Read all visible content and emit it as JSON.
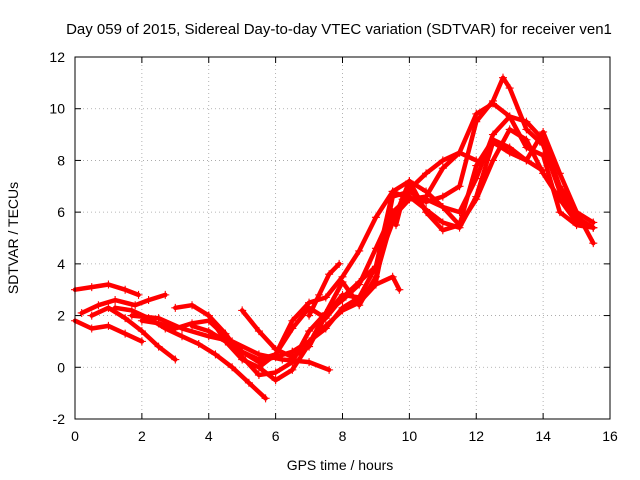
{
  "chart_data": {
    "type": "scatter",
    "title": "Day 059 of 2015, Sidereal Day-to-day VTEC variation (SDTVAR) for receiver ven1",
    "xlabel": "GPS time / hours",
    "ylabel": "SDTVAR / TECUs",
    "xlim": [
      0,
      16
    ],
    "ylim": [
      -2,
      12
    ],
    "xticks": [
      0,
      2,
      4,
      6,
      8,
      10,
      12,
      14,
      16
    ],
    "yticks": [
      -2,
      0,
      2,
      4,
      6,
      8,
      10,
      12
    ],
    "xtick_labels": [
      "0",
      "2",
      "4",
      "6",
      "8",
      "10",
      "12",
      "14",
      "16"
    ],
    "ytick_labels": [
      "-2",
      "0",
      "2",
      "4",
      "6",
      "8",
      "10",
      "12"
    ],
    "grid": true,
    "marker": "+",
    "color": "#ff0000",
    "series": [
      {
        "name": "track-1",
        "x": [
          0.0,
          0.5,
          1.0,
          1.5,
          1.9
        ],
        "y": [
          3.0,
          3.1,
          3.2,
          3.0,
          2.8
        ]
      },
      {
        "name": "track-2",
        "x": [
          0.2,
          0.7,
          1.2,
          1.8,
          2.2,
          2.7
        ],
        "y": [
          2.1,
          2.4,
          2.6,
          2.4,
          2.6,
          2.8
        ]
      },
      {
        "name": "track-3",
        "x": [
          0.0,
          0.5,
          1.0,
          1.5,
          2.0
        ],
        "y": [
          1.8,
          1.5,
          1.6,
          1.3,
          1.0
        ]
      },
      {
        "name": "track-4",
        "x": [
          0.5,
          1.0,
          1.5,
          2.0,
          2.5,
          3.0
        ],
        "y": [
          2.0,
          2.3,
          1.9,
          1.4,
          0.8,
          0.3
        ]
      },
      {
        "name": "track-5",
        "x": [
          1.2,
          1.7,
          2.2,
          2.7,
          3.2,
          3.7,
          4.2,
          4.7,
          5.2,
          5.7
        ],
        "y": [
          2.3,
          2.2,
          1.9,
          1.5,
          1.2,
          0.9,
          0.5,
          0.0,
          -0.6,
          -1.2
        ]
      },
      {
        "name": "track-6",
        "x": [
          1.7,
          2.5,
          3.2,
          4.0,
          4.7,
          5.5,
          6.2,
          7.0,
          7.6
        ],
        "y": [
          2.0,
          1.9,
          1.5,
          1.2,
          1.0,
          0.5,
          0.3,
          0.2,
          -0.1
        ]
      },
      {
        "name": "track-7",
        "x": [
          2.0,
          2.5,
          3.0,
          3.5,
          4.0,
          4.5,
          5.0,
          5.5,
          6.0,
          6.5,
          7.0,
          7.5,
          8.0,
          8.5,
          9.0,
          9.5,
          9.7
        ],
        "y": [
          1.8,
          1.7,
          1.5,
          1.7,
          1.8,
          1.2,
          0.6,
          0.2,
          0.4,
          0.6,
          1.0,
          1.6,
          2.2,
          2.5,
          3.2,
          3.5,
          3.0
        ]
      },
      {
        "name": "track-8",
        "x": [
          3.0,
          3.5,
          4.0,
          4.5,
          5.0,
          5.5,
          6.0,
          6.5,
          7.0,
          7.5,
          8.0,
          8.5,
          9.0,
          9.5,
          10.0,
          10.5,
          11.0,
          11.5,
          12.0,
          12.5,
          13.0,
          13.5,
          14.0,
          14.5,
          15.0,
          15.5
        ],
        "y": [
          2.3,
          2.4,
          2.0,
          1.0,
          0.3,
          0.0,
          0.5,
          1.8,
          2.5,
          2.7,
          3.5,
          4.5,
          5.8,
          6.8,
          6.5,
          6.5,
          6.2,
          5.5,
          6.5,
          8.0,
          9.2,
          8.8,
          7.5,
          6.5,
          5.6,
          5.4
        ]
      },
      {
        "name": "track-9",
        "x": [
          3.5,
          4.0,
          4.5,
          5.0,
          5.5,
          6.0,
          6.5,
          7.0,
          7.5,
          8.0,
          8.5,
          9.0,
          9.5,
          10.0,
          10.5,
          11.0,
          11.5,
          12.0,
          12.5,
          13.0,
          13.5,
          14.0,
          14.5,
          15.0,
          15.5
        ],
        "y": [
          1.6,
          1.4,
          1.0,
          0.6,
          0.3,
          0.5,
          1.5,
          2.3,
          1.9,
          2.7,
          3.3,
          3.9,
          5.6,
          7.2,
          6.0,
          5.3,
          5.5,
          7.8,
          8.8,
          8.5,
          8.0,
          9.1,
          7.5,
          6.0,
          4.8
        ]
      },
      {
        "name": "track-10",
        "x": [
          4.0,
          4.5,
          5.0,
          5.5,
          6.0,
          6.5,
          7.0,
          7.5,
          8.0,
          8.5,
          9.0,
          9.5,
          10.0,
          10.5,
          11.0,
          11.5,
          12.0,
          12.5,
          13.0,
          13.5,
          14.0
        ],
        "y": [
          2.0,
          1.3,
          0.4,
          -0.3,
          -0.2,
          0.2,
          1.4,
          2.1,
          2.6,
          3.2,
          4.6,
          6.0,
          6.6,
          6.1,
          5.6,
          5.4,
          6.6,
          8.7,
          8.3,
          8.0,
          7.6
        ]
      },
      {
        "name": "track-11",
        "x": [
          5.0,
          5.5,
          6.0,
          6.5,
          7.0,
          7.5,
          8.0,
          8.5,
          9.0,
          9.5,
          10.0,
          10.5,
          11.0,
          11.5,
          12.0,
          12.5,
          13.0,
          13.5,
          14.0,
          14.5,
          15.0,
          15.5
        ],
        "y": [
          2.2,
          1.4,
          0.7,
          0.4,
          0.8,
          2.0,
          2.8,
          2.7,
          3.9,
          6.8,
          7.2,
          6.8,
          6.2,
          6.0,
          7.3,
          9.0,
          9.7,
          9.5,
          8.8,
          7.0,
          6.0,
          5.6
        ]
      },
      {
        "name": "track-12",
        "x": [
          5.5,
          6.0,
          6.5,
          7.0,
          7.5,
          8.0,
          8.5,
          9.0,
          9.5,
          10.0,
          10.5,
          11.0,
          11.5,
          12.0,
          12.5,
          13.0,
          13.5,
          14.0,
          14.5,
          15.0,
          15.5
        ],
        "y": [
          0.0,
          -0.5,
          -0.1,
          0.9,
          2.1,
          3.3,
          2.4,
          3.5,
          5.8,
          6.5,
          6.6,
          7.7,
          8.3,
          9.8,
          10.2,
          9.7,
          8.5,
          8.2,
          6.0,
          5.5,
          5.4
        ]
      },
      {
        "name": "track-13",
        "x": [
          6.5,
          7.0,
          7.5,
          8.0,
          8.5,
          9.0,
          9.5,
          10.0,
          10.5,
          11.0,
          11.5,
          12.0,
          12.5,
          12.8,
          13.0,
          13.5,
          14.0,
          14.5,
          15.0,
          15.5
        ],
        "y": [
          0.6,
          1.0,
          1.5,
          2.3,
          2.7,
          3.3,
          6.6,
          6.8,
          6.4,
          6.6,
          7.0,
          9.5,
          10.3,
          11.2,
          10.8,
          9.2,
          8.6,
          6.8,
          5.8,
          5.4
        ]
      },
      {
        "name": "track-14",
        "x": [
          7.0,
          7.3,
          7.6,
          7.9
        ],
        "y": [
          2.0,
          2.8,
          3.6,
          4.0
        ]
      },
      {
        "name": "track-15",
        "x": [
          9.6,
          9.8,
          10.1,
          10.5,
          11.0,
          11.5,
          12.0
        ],
        "y": [
          5.5,
          6.5,
          7.0,
          7.5,
          8.0,
          8.3,
          8.0
        ]
      }
    ]
  }
}
